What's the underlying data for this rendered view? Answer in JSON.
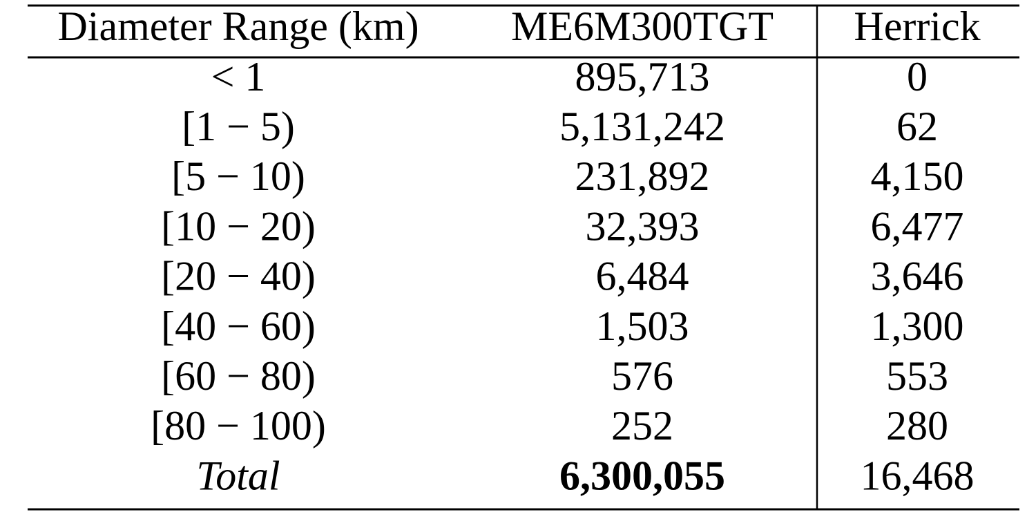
{
  "table": {
    "header": [
      "Diameter Range (km)",
      "ME6M300TGT",
      "Herrick"
    ],
    "rows": [
      [
        "< 1",
        "895,713",
        "0"
      ],
      [
        "[1 − 5)",
        "5,131,242",
        "62"
      ],
      [
        "[5 − 10)",
        "231,892",
        "4,150"
      ],
      [
        "[10 − 20)",
        "32,393",
        "6,477"
      ],
      [
        "[20 − 40)",
        "6,484",
        "3,646"
      ],
      [
        "[40 − 60)",
        "1,503",
        "1,300"
      ],
      [
        "[60 − 80)",
        "576",
        "553"
      ],
      [
        "[80 − 100)",
        "252",
        "280"
      ],
      [
        "Total",
        "6,300,055",
        "16,468"
      ]
    ]
  }
}
